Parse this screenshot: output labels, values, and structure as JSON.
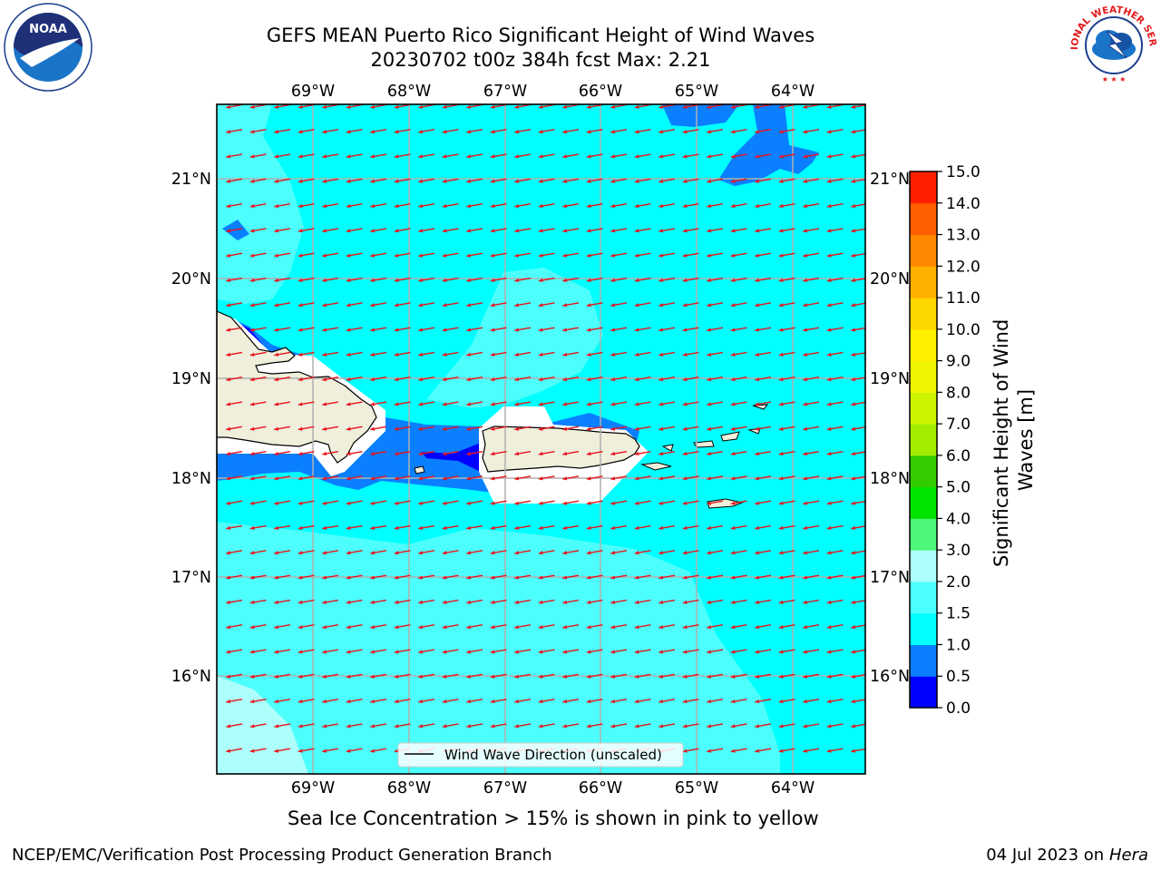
{
  "title_line1": "GEFS MEAN Puerto Rico Significant Height of Wind Waves",
  "title_line2": "20230702 t00z 384h fcst   Max: 2.21",
  "map": {
    "lon_labels": [
      "69°W",
      "68°W",
      "67°W",
      "66°W",
      "65°W",
      "64°W"
    ],
    "lat_labels": [
      "21°N",
      "20°N",
      "19°N",
      "18°N",
      "17°N",
      "16°N"
    ],
    "lon_values": [
      -69,
      -68,
      -67,
      -66,
      -65,
      -64
    ],
    "lat_values": [
      21,
      20,
      19,
      18,
      17,
      16
    ],
    "lon_range": [
      -70.0,
      -63.25
    ],
    "lat_range": [
      15.0,
      21.75
    ],
    "legend_label": "Wind Wave Direction (unscaled)",
    "arrow_color": "#e8141c",
    "grid": true
  },
  "colorbar": {
    "label": "Significant Height of Wind Waves [m]",
    "ticks": [
      "15.0",
      "14.0",
      "13.0",
      "12.0",
      "11.0",
      "10.0",
      "9.0",
      "8.0",
      "7.0",
      "6.0",
      "5.0",
      "4.0",
      "3.0",
      "2.0",
      "1.5",
      "1.0",
      "0.5",
      "0.0"
    ],
    "levels": [
      0.0,
      0.5,
      1.0,
      1.5,
      2.0,
      3.0,
      4.0,
      5.0,
      6.0,
      7.0,
      8.0,
      9.0,
      10.0,
      11.0,
      12.0,
      13.0,
      14.0,
      15.0
    ],
    "colors": [
      "#0000ff",
      "#0a7fff",
      "#00ffff",
      "#4dfffc",
      "#adfffb",
      "#4df77a",
      "#00e400",
      "#33cc00",
      "#a3ee00",
      "#cdf300",
      "#f0f500",
      "#fff000",
      "#ffd700",
      "#ffb000",
      "#ff8800",
      "#ff5e00",
      "#ff2000"
    ]
  },
  "logos": {
    "noaa": "NOAA",
    "nws": "NATIONAL WEATHER SERVICE"
  },
  "captions": {
    "ice": "Sea Ice Concentration > 15% is shown in pink to yellow",
    "credit_left": "NCEP/EMC/Verification Post Processing Product Generation Branch",
    "credit_date": "04 Jul 2023 on ",
    "credit_system": "Hera"
  }
}
